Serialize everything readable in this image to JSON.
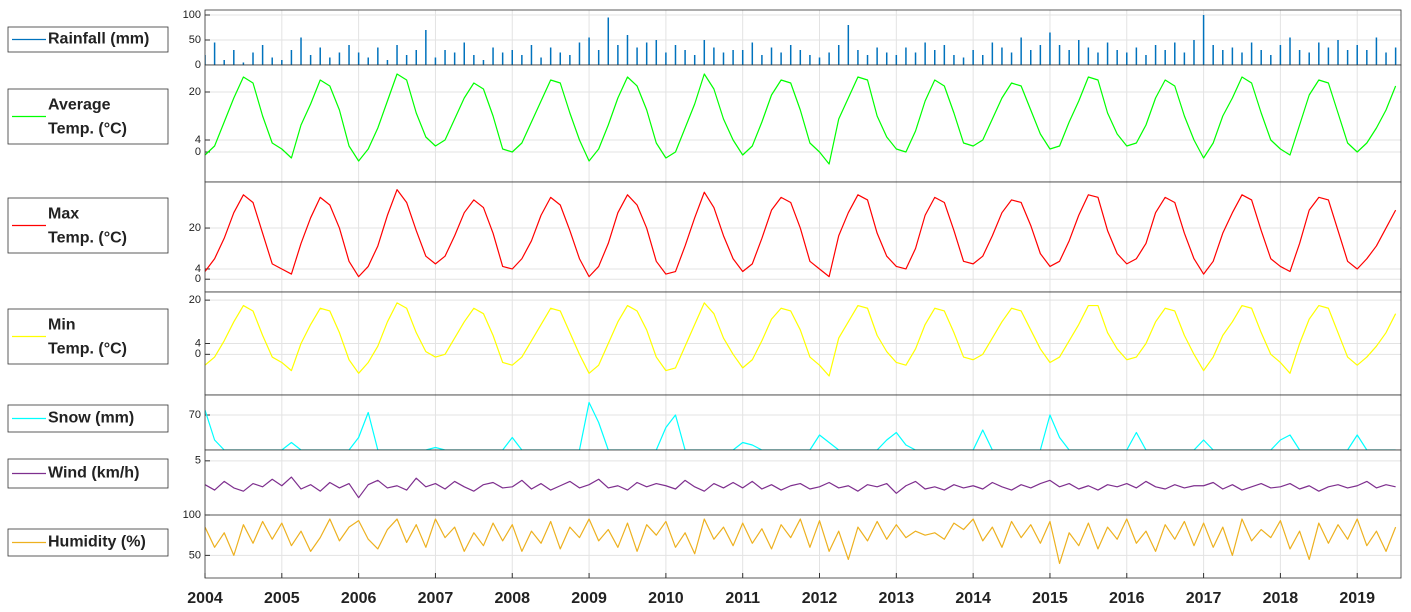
{
  "chart_data": {
    "type": "line",
    "grid": true,
    "xlim": [
      2004,
      2019.57
    ],
    "xticks": [
      2004,
      2005,
      2006,
      2007,
      2008,
      2009,
      2010,
      2011,
      2012,
      2013,
      2014,
      2015,
      2016,
      2017,
      2018,
      2019
    ],
    "x": [
      2004,
      2004.125,
      2004.25,
      2004.375,
      2004.5,
      2004.625,
      2004.75,
      2004.875,
      2005,
      2005.125,
      2005.25,
      2005.375,
      2005.5,
      2005.625,
      2005.75,
      2005.875,
      2006,
      2006.125,
      2006.25,
      2006.375,
      2006.5,
      2006.625,
      2006.75,
      2006.875,
      2007,
      2007.125,
      2007.25,
      2007.375,
      2007.5,
      2007.625,
      2007.75,
      2007.875,
      2008,
      2008.125,
      2008.25,
      2008.375,
      2008.5,
      2008.625,
      2008.75,
      2008.875,
      2009,
      2009.125,
      2009.25,
      2009.375,
      2009.5,
      2009.625,
      2009.75,
      2009.875,
      2010,
      2010.125,
      2010.25,
      2010.375,
      2010.5,
      2010.625,
      2010.75,
      2010.875,
      2011,
      2011.125,
      2011.25,
      2011.375,
      2011.5,
      2011.625,
      2011.75,
      2011.875,
      2012,
      2012.125,
      2012.25,
      2012.375,
      2012.5,
      2012.625,
      2012.75,
      2012.875,
      2013,
      2013.125,
      2013.25,
      2013.375,
      2013.5,
      2013.625,
      2013.75,
      2013.875,
      2014,
      2014.125,
      2014.25,
      2014.375,
      2014.5,
      2014.625,
      2014.75,
      2014.875,
      2015,
      2015.125,
      2015.25,
      2015.375,
      2015.5,
      2015.625,
      2015.75,
      2015.875,
      2016,
      2016.125,
      2016.25,
      2016.375,
      2016.5,
      2016.625,
      2016.75,
      2016.875,
      2017,
      2017.125,
      2017.25,
      2017.375,
      2017.5,
      2017.625,
      2017.75,
      2017.875,
      2018,
      2018.125,
      2018.25,
      2018.375,
      2018.5,
      2018.625,
      2018.75,
      2018.875,
      2019,
      2019.125,
      2019.25,
      2019.375,
      2019.5
    ],
    "series": [
      {
        "name": "Rainfall (mm)",
        "type": "bar",
        "color": "#0072bd",
        "ylim": [
          0,
          110
        ],
        "yticks": [
          0,
          50,
          100
        ],
        "values": [
          20,
          45,
          10,
          30,
          5,
          25,
          40,
          15,
          10,
          30,
          55,
          20,
          35,
          15,
          25,
          40,
          25,
          15,
          35,
          10,
          40,
          20,
          30,
          70,
          15,
          30,
          25,
          45,
          20,
          10,
          35,
          25,
          30,
          20,
          40,
          15,
          35,
          25,
          20,
          45,
          55,
          30,
          95,
          40,
          60,
          35,
          45,
          50,
          25,
          40,
          30,
          20,
          50,
          35,
          25,
          30,
          30,
          45,
          20,
          35,
          25,
          40,
          30,
          20,
          15,
          25,
          40,
          80,
          30,
          20,
          35,
          25,
          20,
          35,
          25,
          45,
          30,
          40,
          20,
          15,
          30,
          20,
          45,
          35,
          25,
          55,
          30,
          40,
          65,
          40,
          30,
          50,
          35,
          25,
          45,
          30,
          25,
          35,
          20,
          40,
          30,
          45,
          25,
          50,
          100,
          40,
          30,
          35,
          25,
          45,
          30,
          20,
          40,
          55,
          30,
          25,
          45,
          35,
          50,
          30,
          40,
          30,
          55,
          25,
          35
        ]
      },
      {
        "name": "Average Temp. (°C)",
        "color": "#00ff00",
        "ylim": [
          -10,
          29
        ],
        "yticks": [
          0,
          4,
          20
        ],
        "values": [
          -1,
          2,
          10,
          18,
          25,
          23,
          12,
          3,
          1,
          -2,
          9,
          16,
          24,
          22,
          14,
          2,
          -3,
          1,
          8,
          17,
          26,
          24,
          13,
          5,
          2,
          4,
          11,
          18,
          23,
          21,
          12,
          1,
          0,
          3,
          10,
          17,
          24,
          23,
          13,
          4,
          -3,
          1,
          9,
          18,
          25,
          22,
          14,
          3,
          -2,
          0,
          8,
          16,
          26,
          21,
          11,
          4,
          -1,
          2,
          10,
          19,
          24,
          23,
          14,
          3,
          0,
          -4,
          11,
          18,
          25,
          24,
          12,
          5,
          1,
          0,
          7,
          17,
          24,
          22,
          13,
          3,
          2,
          4,
          11,
          18,
          23,
          22,
          14,
          6,
          1,
          2,
          10,
          17,
          25,
          24,
          13,
          6,
          2,
          3,
          9,
          18,
          24,
          22,
          12,
          4,
          -2,
          3,
          12,
          18,
          25,
          23,
          13,
          4,
          1,
          -1,
          9,
          19,
          24,
          23,
          13,
          3,
          0,
          3,
          8,
          14,
          22
        ]
      },
      {
        "name": "Max Temp. (°C)",
        "color": "#ff0000",
        "ylim": [
          -5,
          38
        ],
        "yticks": [
          0,
          4,
          20
        ],
        "values": [
          3,
          8,
          16,
          26,
          33,
          30,
          18,
          6,
          4,
          2,
          14,
          24,
          32,
          29,
          20,
          7,
          1,
          5,
          13,
          25,
          35,
          30,
          19,
          9,
          6,
          9,
          17,
          26,
          31,
          28,
          18,
          5,
          4,
          8,
          15,
          25,
          32,
          29,
          19,
          8,
          1,
          5,
          14,
          26,
          33,
          29,
          20,
          7,
          2,
          3,
          13,
          24,
          34,
          28,
          17,
          8,
          3,
          6,
          16,
          27,
          32,
          30,
          20,
          7,
          4,
          1,
          17,
          26,
          33,
          31,
          18,
          9,
          5,
          4,
          12,
          25,
          32,
          30,
          19,
          7,
          6,
          9,
          17,
          26,
          31,
          30,
          21,
          10,
          5,
          7,
          15,
          25,
          33,
          32,
          19,
          10,
          6,
          8,
          14,
          26,
          32,
          30,
          18,
          8,
          2,
          7,
          18,
          26,
          33,
          31,
          19,
          8,
          5,
          3,
          14,
          27,
          32,
          31,
          19,
          7,
          4,
          8,
          13,
          20,
          27
        ]
      },
      {
        "name": "Min Temp. (°C)",
        "color": "#ffff00",
        "ylim": [
          -15,
          23
        ],
        "yticks": [
          0,
          4,
          20
        ],
        "values": [
          -4,
          -1,
          5,
          12,
          18,
          16,
          7,
          -1,
          -3,
          -6,
          4,
          11,
          17,
          16,
          8,
          -2,
          -7,
          -3,
          3,
          12,
          19,
          17,
          8,
          1,
          -1,
          0,
          6,
          12,
          17,
          15,
          7,
          -3,
          -4,
          -1,
          5,
          11,
          17,
          16,
          8,
          0,
          -7,
          -4,
          4,
          12,
          18,
          16,
          9,
          -1,
          -6,
          -5,
          3,
          11,
          19,
          15,
          6,
          0,
          -5,
          -2,
          5,
          13,
          17,
          16,
          9,
          -1,
          -4,
          -8,
          6,
          12,
          18,
          17,
          7,
          1,
          -3,
          -4,
          2,
          11,
          17,
          16,
          8,
          -1,
          -2,
          0,
          6,
          12,
          17,
          16,
          9,
          2,
          -3,
          -1,
          5,
          11,
          18,
          18,
          8,
          2,
          -2,
          -1,
          4,
          12,
          17,
          16,
          7,
          0,
          -6,
          -1,
          7,
          12,
          18,
          17,
          8,
          0,
          -3,
          -7,
          4,
          13,
          18,
          17,
          8,
          -1,
          -4,
          -1,
          3,
          8,
          15
        ]
      },
      {
        "name": "Snow (mm)",
        "color": "#00ffff",
        "ylim": [
          0,
          110
        ],
        "yticks": [
          70
        ],
        "values": [
          80,
          20,
          0,
          0,
          0,
          0,
          0,
          0,
          0,
          15,
          0,
          0,
          0,
          0,
          0,
          0,
          25,
          75,
          0,
          0,
          0,
          0,
          0,
          0,
          5,
          0,
          0,
          0,
          0,
          0,
          0,
          0,
          25,
          0,
          0,
          0,
          0,
          0,
          0,
          0,
          95,
          55,
          0,
          0,
          0,
          0,
          0,
          0,
          45,
          70,
          0,
          0,
          0,
          0,
          0,
          0,
          15,
          10,
          0,
          0,
          0,
          0,
          0,
          0,
          30,
          15,
          0,
          0,
          0,
          0,
          0,
          20,
          35,
          10,
          0,
          0,
          0,
          0,
          0,
          0,
          0,
          40,
          0,
          0,
          0,
          0,
          0,
          0,
          70,
          25,
          0,
          0,
          0,
          0,
          0,
          0,
          0,
          35,
          0,
          0,
          0,
          0,
          0,
          0,
          20,
          0,
          0,
          0,
          0,
          0,
          0,
          0,
          20,
          30,
          0,
          0,
          0,
          0,
          0,
          0,
          30,
          0,
          0,
          0,
          0
        ]
      },
      {
        "name": "Wind (km/h)",
        "color": "#7e2f8e",
        "ylim": [
          0,
          6
        ],
        "yticks": [
          5
        ],
        "values": [
          2.8,
          2.3,
          3.1,
          2.5,
          2.2,
          2.9,
          2.6,
          3.3,
          2.7,
          3.5,
          2.4,
          2.8,
          2.2,
          3.0,
          2.5,
          2.9,
          1.6,
          2.8,
          3.2,
          2.5,
          2.7,
          2.3,
          3.4,
          2.6,
          2.9,
          2.4,
          3.1,
          2.6,
          2.2,
          2.8,
          3.0,
          2.5,
          2.6,
          3.2,
          2.4,
          2.9,
          2.3,
          2.7,
          3.1,
          2.5,
          2.8,
          3.3,
          2.5,
          2.7,
          2.3,
          3.0,
          2.6,
          2.9,
          2.7,
          2.4,
          3.2,
          2.6,
          2.2,
          2.9,
          2.5,
          3.0,
          2.5,
          3.1,
          2.4,
          2.8,
          2.3,
          2.7,
          2.9,
          2.4,
          2.6,
          3.0,
          2.5,
          2.7,
          2.2,
          2.8,
          2.6,
          2.9,
          2.0,
          2.7,
          3.1,
          2.4,
          2.6,
          2.3,
          2.8,
          2.5,
          2.7,
          2.4,
          3.0,
          2.6,
          2.3,
          2.8,
          2.5,
          2.9,
          3.2,
          2.6,
          2.9,
          2.4,
          2.7,
          2.3,
          2.8,
          2.6,
          2.9,
          2.5,
          3.1,
          2.6,
          2.4,
          2.8,
          2.5,
          2.7,
          2.7,
          3.0,
          2.4,
          2.8,
          2.3,
          2.6,
          2.9,
          2.5,
          2.6,
          2.9,
          2.4,
          2.7,
          2.2,
          2.6,
          2.8,
          2.5,
          2.7,
          3.1,
          2.5,
          2.8,
          2.6
        ]
      },
      {
        "name": "Humidity (%)",
        "color": "#edb120",
        "ylim": [
          22,
          100
        ],
        "yticks": [
          50,
          100
        ],
        "values": [
          85,
          60,
          78,
          50,
          88,
          65,
          92,
          70,
          90,
          62,
          80,
          55,
          72,
          95,
          68,
          85,
          93,
          70,
          58,
          82,
          95,
          66,
          88,
          60,
          95,
          72,
          85,
          55,
          78,
          62,
          90,
          68,
          88,
          55,
          80,
          65,
          92,
          58,
          85,
          72,
          95,
          68,
          82,
          60,
          90,
          55,
          88,
          75,
          92,
          60,
          78,
          52,
          95,
          70,
          85,
          62,
          90,
          65,
          83,
          58,
          88,
          72,
          95,
          60,
          93,
          55,
          80,
          45,
          85,
          68,
          92,
          70,
          88,
          72,
          80,
          75,
          78,
          70,
          90,
          82,
          95,
          68,
          85,
          60,
          92,
          72,
          88,
          65,
          92,
          40,
          78,
          62,
          90,
          58,
          85,
          70,
          95,
          65,
          80,
          55,
          88,
          70,
          92,
          62,
          90,
          60,
          85,
          50,
          95,
          68,
          82,
          72,
          93,
          58,
          80,
          45,
          90,
          65,
          88,
          70,
          95,
          62,
          80,
          55,
          85
        ]
      }
    ]
  }
}
